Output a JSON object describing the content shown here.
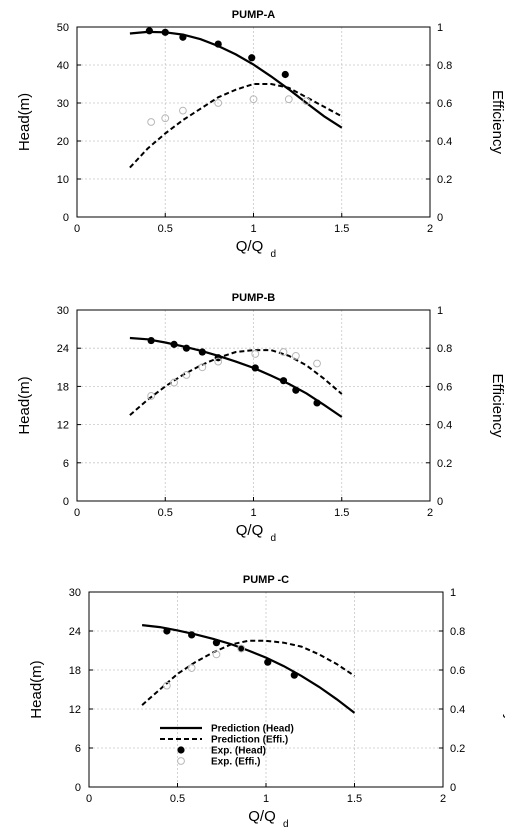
{
  "chart_data": [
    {
      "type": "line",
      "title": "PUMP-A",
      "xlabel": "Q/Q",
      "xlabel_sub": "d",
      "ylabel": "Head(m)",
      "y2label": "Efficiency",
      "xlim": [
        0,
        2
      ],
      "ylim": [
        0,
        50
      ],
      "y2lim": [
        0,
        1
      ],
      "xticks": [
        "0",
        "0.5",
        "1",
        "1.5",
        "2"
      ],
      "yticks": [
        "0",
        "10",
        "20",
        "30",
        "40",
        "50"
      ],
      "y2ticks": [
        "0",
        "0.2",
        "0.4",
        "0.6",
        "0.8",
        "1"
      ],
      "grid": true,
      "series": [
        {
          "name": "Prediction (Head)",
          "axis": "left",
          "style": "solid",
          "x": [
            0.3,
            0.4,
            0.5,
            0.6,
            0.7,
            0.8,
            0.9,
            1.0,
            1.1,
            1.2,
            1.3,
            1.4,
            1.5
          ],
          "y": [
            48.3,
            48.7,
            48.6,
            48.0,
            46.8,
            45.0,
            42.8,
            40.1,
            37.0,
            33.6,
            30.0,
            26.5,
            23.5
          ]
        },
        {
          "name": "Prediction (Effi.)",
          "axis": "right",
          "style": "dashed",
          "x": [
            0.3,
            0.4,
            0.5,
            0.6,
            0.7,
            0.8,
            0.9,
            1.0,
            1.1,
            1.2,
            1.3,
            1.4,
            1.5
          ],
          "y": [
            0.26,
            0.36,
            0.44,
            0.51,
            0.57,
            0.63,
            0.67,
            0.7,
            0.7,
            0.68,
            0.63,
            0.58,
            0.53
          ]
        },
        {
          "name": "Exp. (Head)",
          "axis": "left",
          "style": "marker-filled",
          "x": [
            0.41,
            0.5,
            0.6,
            0.8,
            0.99,
            1.18
          ],
          "y": [
            49.0,
            48.6,
            47.3,
            45.5,
            41.9,
            37.5
          ]
        },
        {
          "name": "Exp. (Effi.)",
          "axis": "right",
          "style": "marker-open",
          "x": [
            0.42,
            0.5,
            0.6,
            0.8,
            1.0,
            1.2,
            1.3
          ],
          "y": [
            0.5,
            0.52,
            0.56,
            0.6,
            0.62,
            0.62,
            0.61
          ]
        }
      ]
    },
    {
      "type": "line",
      "title": "PUMP-B",
      "xlabel": "Q/Q",
      "xlabel_sub": "d",
      "ylabel": "Head(m)",
      "y2label": "Efficiency",
      "xlim": [
        0,
        2
      ],
      "ylim": [
        0,
        30
      ],
      "y2lim": [
        0,
        1
      ],
      "xticks": [
        "0",
        "0.5",
        "1",
        "1.5",
        "2"
      ],
      "yticks": [
        "0",
        "6",
        "12",
        "18",
        "24",
        "30"
      ],
      "y2ticks": [
        "0",
        "0.2",
        "0.4",
        "0.6",
        "0.8",
        "1"
      ],
      "grid": true,
      "series": [
        {
          "name": "Prediction (Head)",
          "axis": "left",
          "style": "solid",
          "x": [
            0.3,
            0.4,
            0.5,
            0.6,
            0.7,
            0.8,
            0.9,
            1.0,
            1.1,
            1.2,
            1.3,
            1.4,
            1.5
          ],
          "y": [
            25.6,
            25.4,
            24.9,
            24.3,
            23.6,
            22.8,
            21.9,
            20.9,
            19.7,
            18.4,
            16.9,
            15.1,
            13.2
          ]
        },
        {
          "name": "Prediction (Effi.)",
          "axis": "right",
          "style": "dashed",
          "x": [
            0.3,
            0.4,
            0.5,
            0.6,
            0.7,
            0.8,
            0.9,
            1.0,
            1.1,
            1.2,
            1.3,
            1.4,
            1.5
          ],
          "y": [
            0.45,
            0.53,
            0.6,
            0.66,
            0.71,
            0.75,
            0.78,
            0.79,
            0.79,
            0.76,
            0.71,
            0.64,
            0.56
          ]
        },
        {
          "name": "Exp. (Head)",
          "axis": "left",
          "style": "marker-filled",
          "x": [
            0.42,
            0.55,
            0.62,
            0.71,
            0.8,
            1.01,
            1.17,
            1.24,
            1.36
          ],
          "y": [
            25.2,
            24.6,
            24.0,
            23.4,
            22.5,
            20.9,
            18.9,
            17.4,
            15.4
          ]
        },
        {
          "name": "Exp. (Effi.)",
          "axis": "right",
          "style": "marker-open",
          "x": [
            0.42,
            0.55,
            0.62,
            0.71,
            0.8,
            1.01,
            1.17,
            1.24,
            1.36
          ],
          "y": [
            0.55,
            0.62,
            0.66,
            0.7,
            0.73,
            0.77,
            0.78,
            0.76,
            0.72
          ]
        }
      ]
    },
    {
      "type": "line",
      "title": "PUMP -C",
      "xlabel": "Q/Q",
      "xlabel_sub": "d",
      "ylabel": "Head(m)",
      "y2label": "Efficiency",
      "xlim": [
        0,
        2
      ],
      "ylim": [
        0,
        30
      ],
      "y2lim": [
        0,
        1
      ],
      "xticks": [
        "0",
        "0.5",
        "1",
        "1.5",
        "2"
      ],
      "yticks": [
        "0",
        "6",
        "12",
        "18",
        "24",
        "30"
      ],
      "y2ticks": [
        "0",
        "0.2",
        "0.4",
        "0.6",
        "0.8",
        "1"
      ],
      "grid": true,
      "legend": {
        "placement": "bottom-left",
        "entries": [
          "Prediction (Head)",
          "Prediction (Effi.)",
          "Exp. (Head)",
          "Exp. (Effi.)"
        ]
      },
      "series": [
        {
          "name": "Prediction (Head)",
          "axis": "left",
          "style": "solid",
          "x": [
            0.3,
            0.4,
            0.5,
            0.6,
            0.7,
            0.8,
            0.9,
            1.0,
            1.1,
            1.2,
            1.3,
            1.4,
            1.5
          ],
          "y": [
            24.9,
            24.6,
            24.1,
            23.5,
            22.8,
            22.0,
            21.0,
            19.9,
            18.6,
            17.1,
            15.4,
            13.5,
            11.4
          ]
        },
        {
          "name": "Prediction (Effi.)",
          "axis": "right",
          "style": "dashed",
          "x": [
            0.3,
            0.4,
            0.5,
            0.6,
            0.7,
            0.8,
            0.9,
            1.0,
            1.1,
            1.2,
            1.3,
            1.4,
            1.5
          ],
          "y": [
            0.42,
            0.5,
            0.58,
            0.64,
            0.69,
            0.73,
            0.75,
            0.75,
            0.74,
            0.72,
            0.68,
            0.63,
            0.57
          ]
        },
        {
          "name": "Exp. (Head)",
          "axis": "left",
          "style": "marker-filled",
          "x": [
            0.44,
            0.58,
            0.72,
            0.86,
            1.01,
            1.16
          ],
          "y": [
            24.0,
            23.4,
            22.2,
            21.3,
            19.2,
            17.2
          ]
        },
        {
          "name": "Exp. (Effi.)",
          "axis": "right",
          "style": "marker-open",
          "x": [
            0.44,
            0.58,
            0.72,
            0.86
          ],
          "y": [
            0.52,
            0.61,
            0.68,
            0.71
          ]
        }
      ]
    }
  ]
}
